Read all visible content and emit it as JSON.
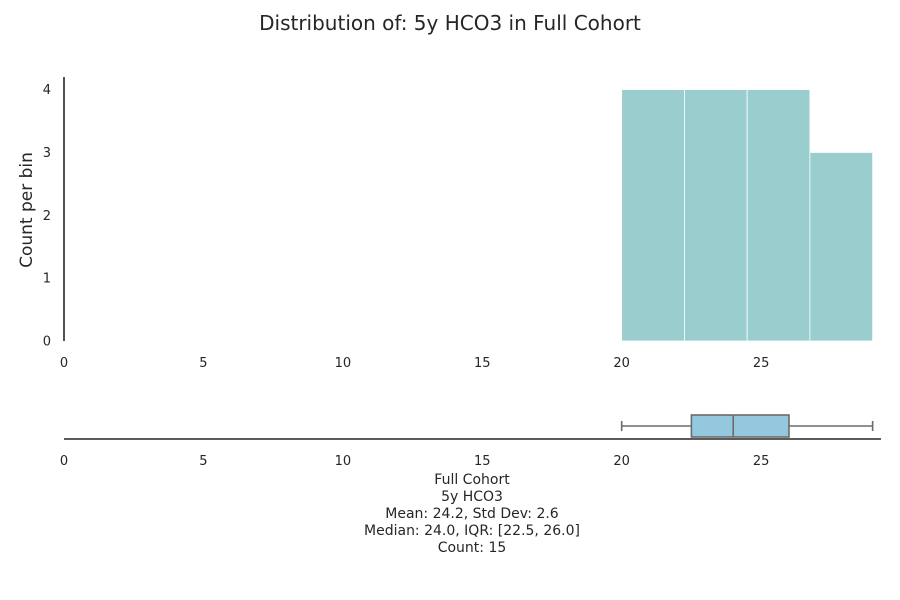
{
  "chart_data": {
    "type": "bar",
    "title": "Distribution of: 5y HCO3 in Full Cohort",
    "ylabel": "Count per bin",
    "xlim": [
      0,
      29.3
    ],
    "ylim": [
      0,
      4.2
    ],
    "x_ticks": [
      "0",
      "5",
      "10",
      "15",
      "20",
      "25"
    ],
    "y_ticks": [
      "0",
      "1",
      "2",
      "3",
      "4"
    ],
    "bar_color": "#9acdcd",
    "bins": [
      {
        "start": 20.0,
        "end": 22.25,
        "count": 4
      },
      {
        "start": 22.25,
        "end": 24.5,
        "count": 4
      },
      {
        "start": 24.5,
        "end": 26.75,
        "count": 4
      },
      {
        "start": 26.75,
        "end": 29.0,
        "count": 3
      }
    ],
    "boxplot": {
      "min": 20.0,
      "q1": 22.5,
      "median": 24.0,
      "q3": 26.0,
      "max": 29.0,
      "box_color": "#93c8df",
      "line_color": "#6b6b6b"
    },
    "stats_lines": [
      "Full Cohort",
      "5y HCO3",
      "Mean: 24.2, Std Dev: 2.6",
      "Median: 24.0, IQR: [22.5, 26.0]",
      "Count: 15"
    ],
    "grid": false
  }
}
